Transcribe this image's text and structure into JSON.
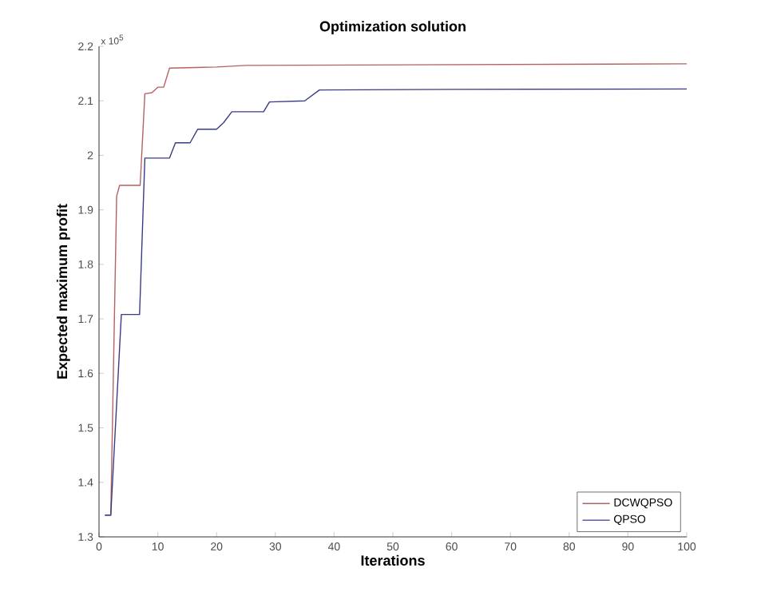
{
  "chart_data": {
    "type": "line",
    "title": "Optimization solution",
    "xlabel": "Iterations",
    "ylabel": "Expected maximum profit",
    "annotations": [
      "x 10$^{5}$"
    ],
    "xlim": [
      0,
      100
    ],
    "xticks": [
      0,
      10,
      20,
      30,
      40,
      50,
      60,
      70,
      80,
      90,
      100
    ],
    "ylim": [
      1.3,
      2.2
    ],
    "yticks": [
      1.3,
      1.4,
      1.5,
      1.6,
      1.7,
      1.8,
      1.9,
      2,
      2.1,
      2.2
    ],
    "legend": "bottom right",
    "marker": "none",
    "line_style": "solid",
    "grid": false,
    "series": [
      {
        "name": "DCWQPSO",
        "color": "#b5625f",
        "x": [
          1,
          2,
          3,
          3.5,
          7,
          7.8,
          9,
          10,
          11,
          12,
          20,
          25,
          100
        ],
        "values": [
          1.34,
          1.34,
          1.925,
          1.945,
          1.945,
          2.113,
          2.115,
          2.125,
          2.125,
          2.16,
          2.162,
          2.165,
          2.168
        ]
      },
      {
        "name": "QPSO",
        "color": "#3a3a8a",
        "x": [
          1,
          2,
          3.8,
          6.9,
          7.8,
          12,
          13,
          15.5,
          16.8,
          20,
          21.2,
          22.6,
          28,
          29,
          35,
          37.5,
          60,
          100
        ],
        "values": [
          1.34,
          1.34,
          1.708,
          1.708,
          1.995,
          1.995,
          2.023,
          2.023,
          2.048,
          2.048,
          2.06,
          2.08,
          2.08,
          2.098,
          2.1,
          2.12,
          2.121,
          2.122
        ]
      }
    ]
  }
}
